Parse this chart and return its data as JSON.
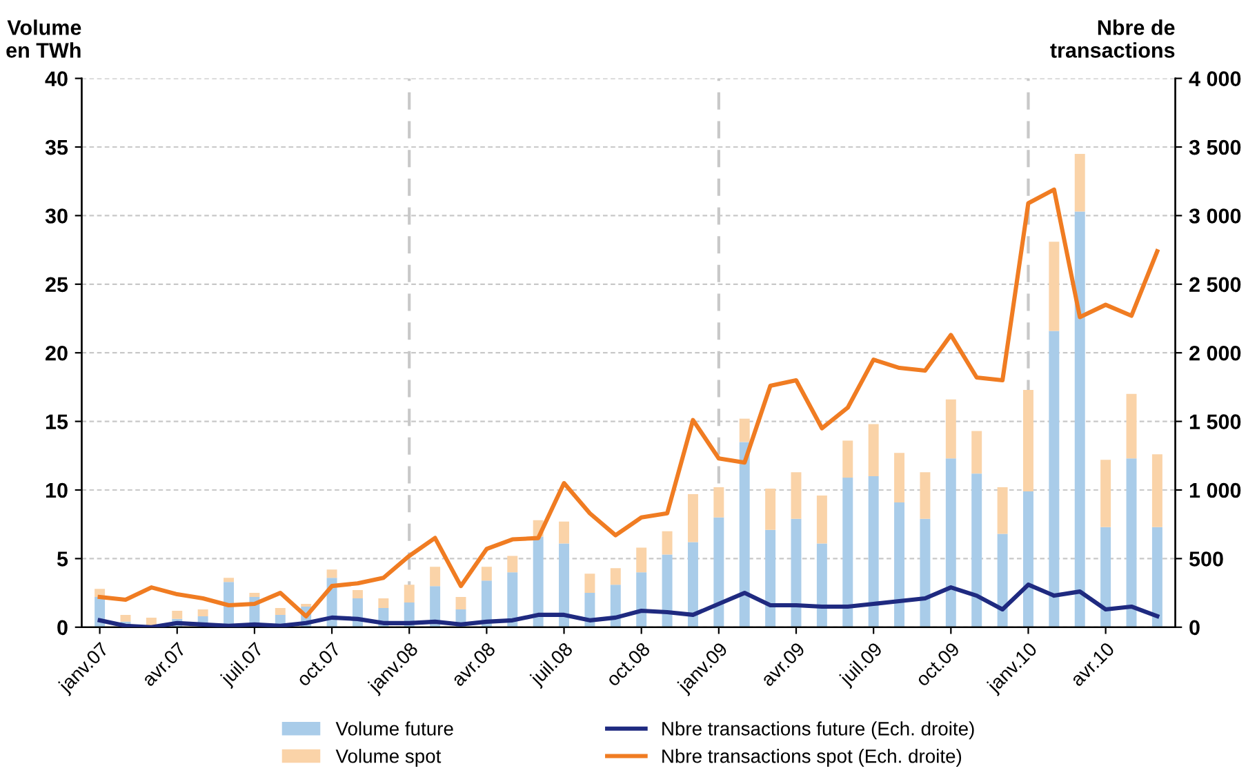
{
  "chart_data": {
    "type": "bar",
    "stacked": true,
    "ylabel": "Volume\nen TWh",
    "y2label": "Nbre de\ntransactions",
    "categories": [
      "janv.07",
      null,
      null,
      "avr.07",
      null,
      null,
      "juil.07",
      null,
      null,
      "oct.07",
      null,
      null,
      "janv.08",
      null,
      null,
      "avr.08",
      null,
      null,
      "juil.08",
      null,
      null,
      "oct.08",
      null,
      null,
      "janv.09",
      null,
      null,
      "avr.09",
      null,
      null,
      "juil.09",
      null,
      null,
      "oct.09",
      null,
      null,
      "janv.10",
      null,
      null,
      "avr.10",
      null,
      null
    ],
    "series": [
      {
        "name": "Volume future",
        "color": "#a9cce9",
        "values": [
          2.2,
          0.4,
          0.1,
          0.6,
          0.8,
          3.3,
          2.2,
          0.9,
          1.5,
          3.6,
          2.1,
          1.4,
          1.8,
          3.0,
          1.3,
          3.4,
          4.0,
          6.6,
          6.1,
          2.5,
          3.1,
          4.0,
          5.3,
          6.2,
          8.0,
          13.5,
          7.1,
          7.9,
          6.1,
          10.9,
          11.0,
          9.1,
          7.9,
          12.3,
          11.2,
          6.8,
          9.9,
          21.6,
          30.3,
          7.3,
          12.3,
          7.3
        ]
      },
      {
        "name": "Volume spot",
        "color": "#fad3a8",
        "values": [
          0.6,
          0.5,
          0.6,
          0.6,
          0.5,
          0.3,
          0.3,
          0.5,
          0.2,
          0.6,
          0.6,
          0.7,
          1.3,
          1.4,
          0.9,
          1.0,
          1.2,
          1.2,
          1.6,
          1.4,
          1.2,
          1.8,
          1.7,
          3.5,
          2.2,
          1.7,
          3.0,
          3.4,
          3.5,
          2.7,
          3.8,
          3.6,
          3.4,
          4.3,
          3.1,
          3.4,
          7.4,
          6.5,
          4.2,
          4.9,
          4.7,
          5.3
        ]
      },
      {
        "name": "Nbre transactions future (Ech. droite)",
        "type": "line",
        "axis": "y2",
        "color": "#1f2a80",
        "values": [
          50,
          10,
          0,
          30,
          20,
          10,
          20,
          10,
          30,
          70,
          60,
          30,
          30,
          40,
          20,
          40,
          50,
          90,
          90,
          50,
          70,
          120,
          110,
          90,
          170,
          250,
          160,
          160,
          150,
          150,
          170,
          190,
          210,
          290,
          230,
          130,
          310,
          230,
          260,
          130,
          150,
          80
        ]
      },
      {
        "name": "Nbre transactions spot (Ech. droite)",
        "type": "line",
        "axis": "y2",
        "color": "#f07c22",
        "values": [
          220,
          200,
          290,
          240,
          210,
          160,
          170,
          250,
          80,
          300,
          320,
          360,
          520,
          650,
          300,
          570,
          640,
          650,
          1050,
          830,
          670,
          800,
          830,
          1510,
          1230,
          1200,
          1760,
          1800,
          1450,
          1600,
          1950,
          1890,
          1870,
          2130,
          1820,
          1800,
          3090,
          3190,
          2260,
          2350,
          2270,
          2740
        ]
      }
    ],
    "ylim": [
      0,
      40
    ],
    "yticks": [
      0,
      5,
      10,
      15,
      20,
      25,
      30,
      35,
      40
    ],
    "y2lim": [
      0,
      4000
    ],
    "y2ticks": [
      {
        "value": 0,
        "label": "0"
      },
      {
        "value": 500,
        "label": "500"
      },
      {
        "value": 1000,
        "label": "1 000"
      },
      {
        "value": 1500,
        "label": "1 500"
      },
      {
        "value": 2000,
        "label": "2 000"
      },
      {
        "value": 2500,
        "label": "2 500"
      },
      {
        "value": 3000,
        "label": "3 000"
      },
      {
        "value": 3500,
        "label": "3 500"
      },
      {
        "value": 4000,
        "label": "4 000"
      }
    ],
    "ref_lines": [
      {
        "axis": "x",
        "value": "janv.08",
        "color": "#c8c8c8",
        "line_style": "dashed"
      },
      {
        "axis": "x",
        "value": "janv.09",
        "color": "#c8c8c8",
        "line_style": "dashed"
      },
      {
        "axis": "x",
        "value": "janv.10",
        "color": "#c8c8c8",
        "line_style": "dashed"
      }
    ],
    "grid": "y",
    "legend": "bottom",
    "line_style": "solid",
    "marker": "none"
  }
}
